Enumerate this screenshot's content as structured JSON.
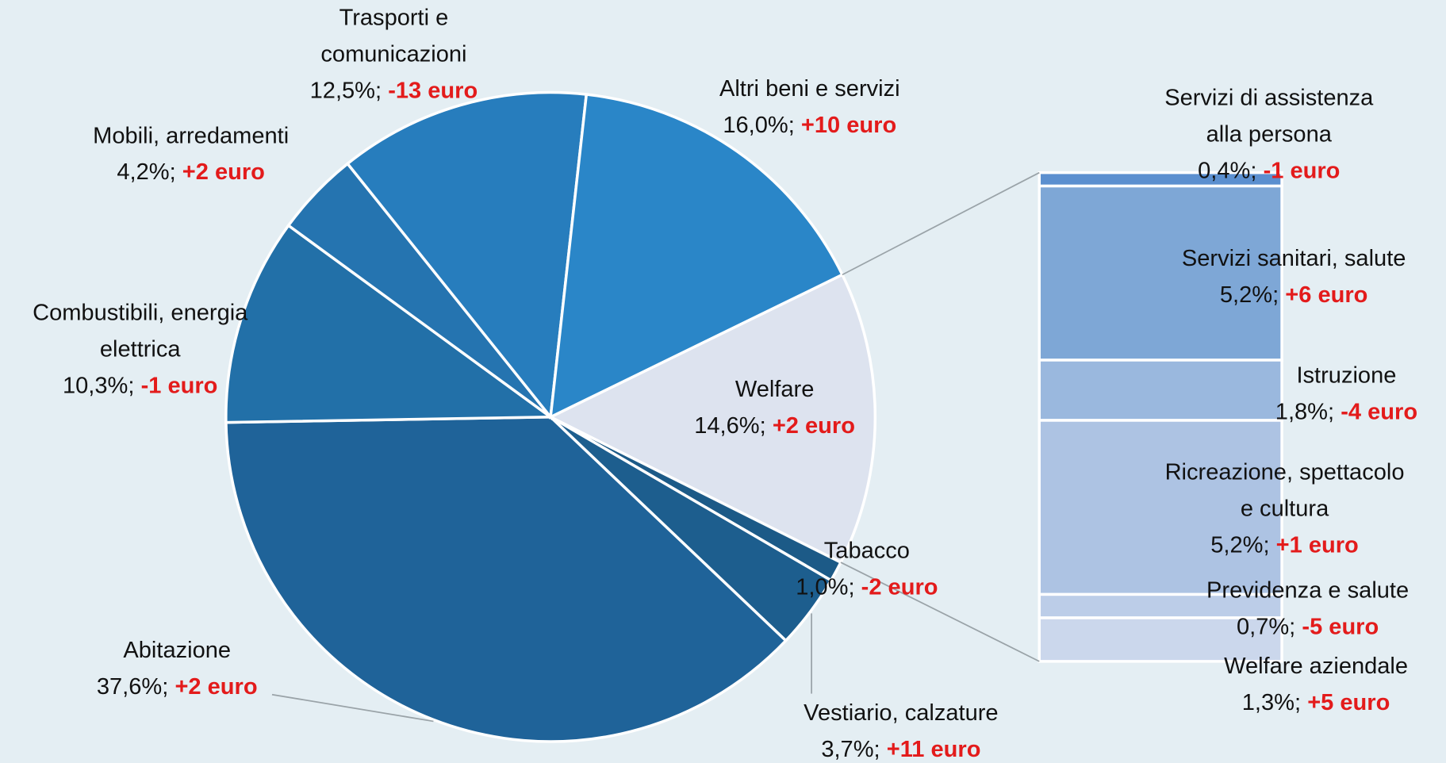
{
  "chart_data": {
    "type": "pie_of_bar",
    "categories": [
      "Welfare",
      "Tabacco",
      "Vestiario, calzature",
      "Abitazione",
      "Combustibili, energia elettrica",
      "Mobili, arredamenti",
      "Trasporti e comunicazioni",
      "Altri beni e servizi"
    ],
    "values": [
      14.6,
      1.0,
      3.7,
      37.6,
      10.3,
      4.2,
      12.5,
      16.0
    ],
    "value_labels": [
      "14,6%;",
      "1,0%;",
      "3,7%;",
      "37,6%;",
      "10,3%;",
      "4,2%;",
      "12,5%;",
      "16,0%;"
    ],
    "change_labels": [
      "+2 euro",
      "-2 euro",
      "+11 euro",
      "+2 euro",
      "-1 euro",
      "+2 euro",
      "-13 euro",
      "+10 euro"
    ],
    "colors": [
      "#dde3ef",
      "#1c5a87",
      "#1d5e8e",
      "#1f6399",
      "#2270a8",
      "#2574b0",
      "#277dbd",
      "#2a86c8"
    ],
    "breakdown": {
      "categories": [
        "Servizi di assistenza alla persona",
        "Servizi sanitari, salute",
        "Istruzione",
        "Ricreazione, spettacolo e cultura",
        "Previdenza e salute",
        "Welfare aziendale"
      ],
      "values": [
        0.4,
        5.2,
        1.8,
        5.2,
        0.7,
        1.3
      ],
      "value_labels": [
        "0,4%;",
        "5,2%;",
        "1,8%;",
        "5,2%;",
        "0,7%;",
        "1,3%;"
      ],
      "change_labels": [
        "-1 euro",
        "+6 euro",
        "-4 euro",
        "+1 euro",
        "-5 euro",
        "+5 euro"
      ],
      "colors": [
        "#5b8fcf",
        "#7ea7d6",
        "#9ab8de",
        "#adc3e3",
        "#bccde8",
        "#cbd7ec"
      ]
    }
  }
}
